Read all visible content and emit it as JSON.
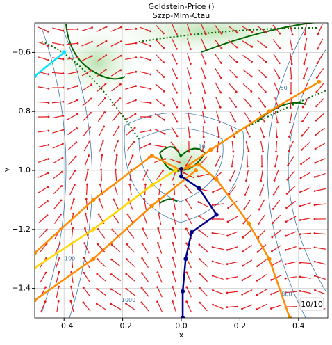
{
  "chart_data": {
    "type": "line",
    "title": "Goldstein-Price ()",
    "subtitle": "Szzp-Mlm-Ctau",
    "x_label": "x",
    "y_label": "y",
    "xlim": [
      -0.5,
      0.5
    ],
    "ylim": [
      -1.5,
      -0.5
    ],
    "xticks": [
      {
        "value": -0.4,
        "label": "−0.4"
      },
      {
        "value": -0.2,
        "label": "−0.2"
      },
      {
        "value": 0,
        "label": "0.0"
      },
      0.2,
      0.4
    ],
    "yticks": [
      {
        "value": -1.4,
        "label": "−1.4"
      },
      {
        "value": -1.2,
        "label": "−1.2"
      },
      {
        "value": -1.0,
        "label": "−1.0"
      },
      {
        "value": -0.8,
        "label": "−0.8"
      },
      {
        "value": -0.6,
        "label": "−0.6"
      }
    ],
    "grid": true,
    "series": [
      {
        "color": "#ff8c00",
        "x": [
          -0.5,
          -0.3,
          -0.1,
          0.0,
          0.1,
          0.3,
          0.47
        ],
        "y": [
          -1.28,
          -1.1,
          -0.95,
          -1.0,
          -0.93,
          -0.8,
          -0.7
        ]
      },
      {
        "color": "#ff8c00",
        "x": [
          -0.5,
          -0.3,
          -0.1,
          0.05
        ],
        "y": [
          -1.44,
          -1.3,
          -1.12,
          -1.0
        ]
      },
      {
        "color": "#ff8c00",
        "x": [
          0.37,
          0.3,
          0.23,
          0.12,
          0.06,
          0.02
        ],
        "y": [
          -1.5,
          -1.3,
          -1.18,
          -1.03,
          -0.98,
          -0.99
        ]
      },
      {
        "color": "#ffd700",
        "x": [
          -0.5,
          -0.3,
          -0.1,
          -0.02
        ],
        "y": [
          -1.33,
          -1.2,
          -1.05,
          -1.0
        ]
      },
      {
        "color": "#00e5ff",
        "x": [
          -0.5,
          -0.4
        ],
        "y": [
          -0.68,
          -0.6
        ]
      },
      {
        "color": "#00008b",
        "x": [
          0.005,
          0.005,
          0.015,
          0.035,
          0.12,
          0.06,
          0.0,
          0.0
        ],
        "y": [
          -1.5,
          -1.41,
          -1.3,
          -1.21,
          -1.15,
          -1.06,
          -1.02,
          -0.995
        ]
      }
    ],
    "contour_labels": [
      {
        "text": "10",
        "x": 0.07,
        "y": -0.92
      },
      {
        "text": "50",
        "x": 0.35,
        "y": -0.72
      },
      {
        "text": "100",
        "x": -0.38,
        "y": -1.3
      },
      {
        "text": "500",
        "x": 0.36,
        "y": -1.42
      },
      {
        "text": "1000",
        "x": -0.18,
        "y": -1.44
      }
    ],
    "counter": "10/10"
  }
}
